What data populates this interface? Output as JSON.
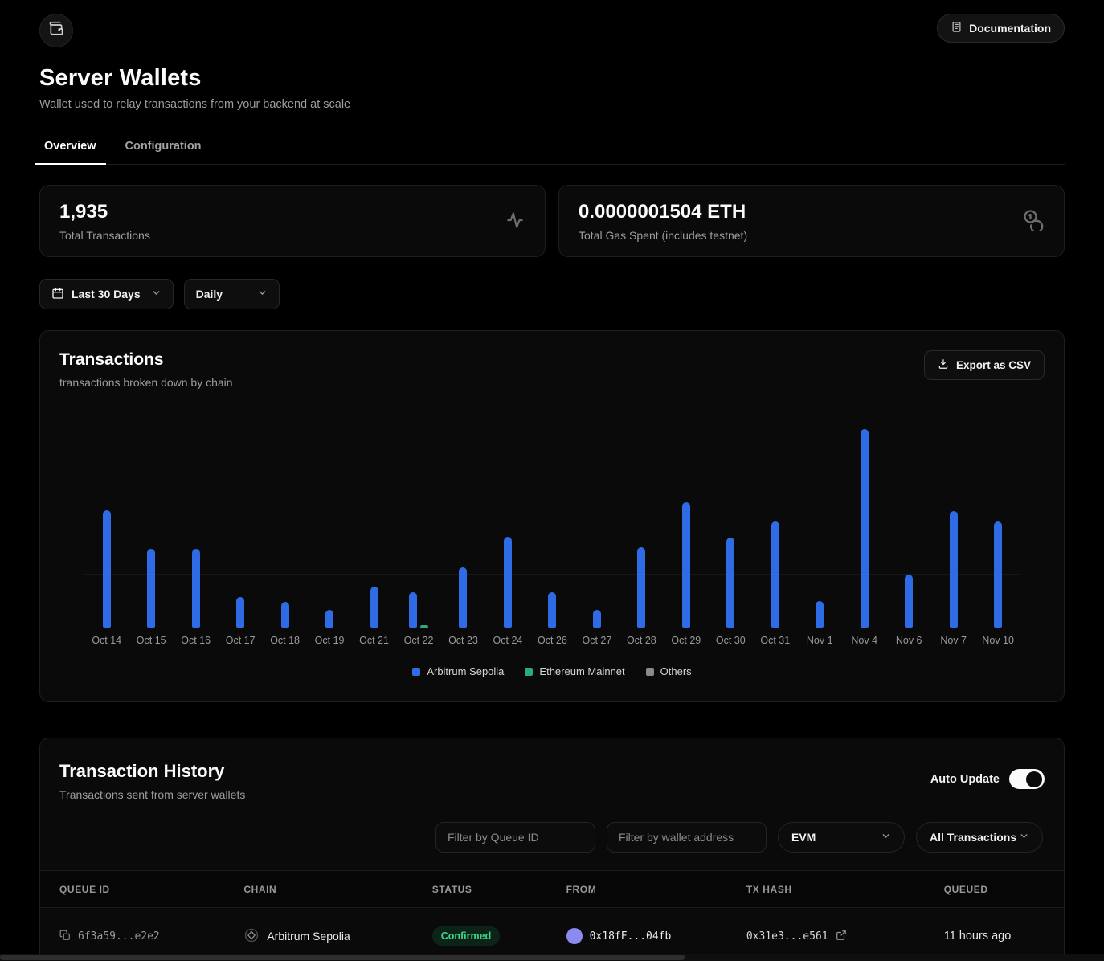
{
  "header": {
    "documentation_label": "Documentation"
  },
  "page": {
    "title": "Server Wallets",
    "subtitle": "Wallet used to relay transactions from your backend at scale"
  },
  "tabs": [
    {
      "label": "Overview",
      "active": true
    },
    {
      "label": "Configuration",
      "active": false
    }
  ],
  "stats": [
    {
      "value": "1,935",
      "label": "Total Transactions",
      "icon": "activity-icon"
    },
    {
      "value": "0.0000001504 ETH",
      "label": "Total Gas Spent (includes testnet)",
      "icon": "coins-icon"
    }
  ],
  "range_filters": {
    "date_range": "Last 30 Days",
    "interval": "Daily"
  },
  "chart_card": {
    "title": "Transactions",
    "subtitle": "transactions broken down by chain",
    "export_label": "Export as CSV"
  },
  "chart_data": {
    "type": "bar",
    "title": "Transactions",
    "subtitle": "transactions broken down by chain",
    "grouped": true,
    "grid": true,
    "legend_position": "bottom",
    "ylim": [
      0,
      264
    ],
    "gridline_values": [
      264,
      198,
      132,
      66,
      0
    ],
    "categories": [
      "Oct 14",
      "Oct 15",
      "Oct 16",
      "Oct 17",
      "Oct 18",
      "Oct 19",
      "Oct 21",
      "Oct 22",
      "Oct 23",
      "Oct 24",
      "Oct 26",
      "Oct 27",
      "Oct 28",
      "Oct 29",
      "Oct 30",
      "Oct 31",
      "Nov 1",
      "Nov 4",
      "Nov 6",
      "Nov 7",
      "Nov 10"
    ],
    "series": [
      {
        "name": "Arbitrum Sepolia",
        "color": "#2E6BE5",
        "values": [
          146,
          98,
          98,
          38,
          32,
          22,
          51,
          44,
          75,
          113,
          44,
          22,
          100,
          156,
          112,
          132,
          33,
          247,
          66,
          145,
          132
        ]
      },
      {
        "name": "Ethereum Mainnet",
        "color": "#2EA97C",
        "values": [
          0,
          0,
          0,
          0,
          0,
          0,
          0,
          3,
          0,
          0,
          0,
          0,
          0,
          0,
          0,
          0,
          0,
          0,
          0,
          0,
          0
        ]
      },
      {
        "name": "Others",
        "color": "#8A8A8A",
        "values": [
          0,
          0,
          0,
          0,
          0,
          0,
          0,
          0,
          0,
          0,
          0,
          0,
          0,
          0,
          0,
          0,
          0,
          0,
          0,
          0,
          0
        ]
      }
    ]
  },
  "history": {
    "title": "Transaction History",
    "subtitle": "Transactions sent from server wallets",
    "auto_update_label": "Auto Update",
    "auto_update_on": true,
    "filters": {
      "queue_placeholder": "Filter by Queue ID",
      "wallet_placeholder": "Filter by wallet address",
      "vm_value": "EVM",
      "type_value": "All Transactions"
    },
    "table": {
      "columns": [
        "QUEUE ID",
        "CHAIN",
        "STATUS",
        "FROM",
        "TX HASH",
        "QUEUED"
      ],
      "rows": [
        {
          "queue_id": "6f3a59...e2e2",
          "chain": "Arbitrum Sepolia",
          "status": "Confirmed",
          "from": "0x18fF...04fb",
          "tx_hash": "0x31e3...e561",
          "queued": "11 hours ago"
        }
      ]
    }
  },
  "colors": {
    "accent_blue": "#2E6BE5",
    "green": "#2EA97C",
    "others_gray": "#8A8A8A",
    "confirmed_text": "#3FD68C",
    "confirmed_bg": "#0C2418",
    "from_avatar": "#8B8AEE"
  }
}
